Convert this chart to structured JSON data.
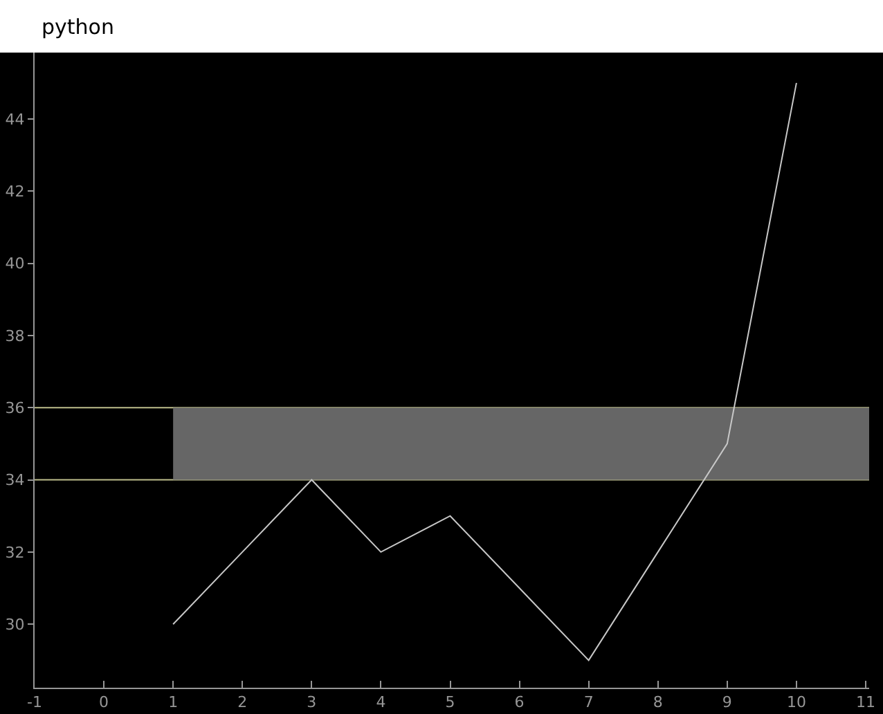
{
  "chart_data": {
    "type": "line",
    "title": "python",
    "x": [
      1,
      2,
      3,
      4,
      5,
      6,
      7,
      8,
      9,
      10
    ],
    "series": [
      {
        "color": "#c8c8c8",
        "values": [
          30,
          32,
          34,
          32,
          33,
          31,
          29,
          32,
          35,
          45
        ]
      }
    ],
    "xlim": [
      -1,
      11.05
    ],
    "xticks": [
      -1,
      0,
      1,
      2,
      3,
      4,
      5,
      6,
      7,
      8,
      9,
      10,
      11
    ],
    "ylim": [
      28.24,
      45.84
    ],
    "yticks": [
      30,
      32,
      34,
      36,
      38,
      40,
      42,
      44
    ],
    "bands": [
      {
        "axis": "y",
        "from": 34,
        "to": 36,
        "color": "#666666"
      }
    ],
    "ref_lines": [
      {
        "axis": "y",
        "value": 34,
        "color": "#bebe8c"
      },
      {
        "axis": "y",
        "value": 36,
        "color": "#bebe8c"
      }
    ],
    "line_style": "solid"
  }
}
